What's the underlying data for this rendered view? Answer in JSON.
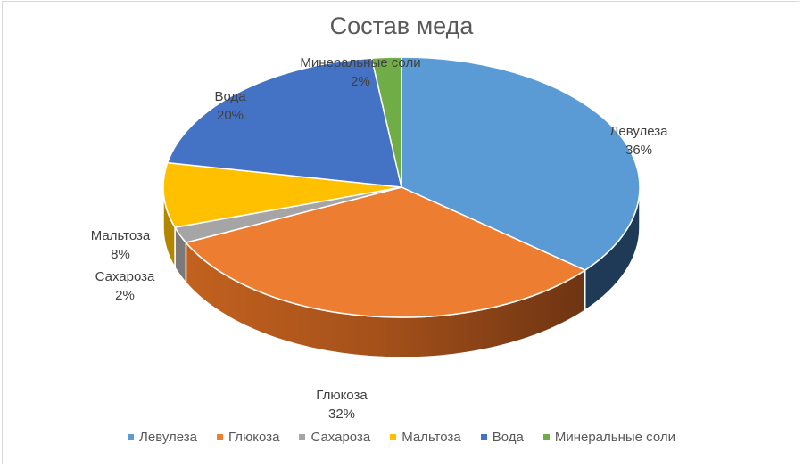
{
  "chart_data": {
    "type": "pie",
    "style": "3d",
    "title": "Состав меда",
    "categories": [
      "Левулеза",
      "Глюкоза",
      "Сахароза",
      "Мальтоза",
      "Вода",
      "Минеральные соли"
    ],
    "values": [
      36,
      32,
      2,
      8,
      20,
      2
    ],
    "unit": "%",
    "colors": [
      "#5B9BD5",
      "#ED7D31",
      "#A5A5A5",
      "#FFC000",
      "#4472C4",
      "#70AD47"
    ],
    "data_labels": [
      {
        "name": "Левулеза",
        "value": "36%"
      },
      {
        "name": "Глюкоза",
        "value": "32%"
      },
      {
        "name": "Сахароза",
        "value": "2%"
      },
      {
        "name": "Мальтоза",
        "value": "8%"
      },
      {
        "name": "Вода",
        "value": "20%"
      },
      {
        "name": "Минеральные соли",
        "value": "2%"
      }
    ],
    "legend_position": "bottom"
  },
  "title": "Состав меда",
  "legend": [
    {
      "label": "Левулеза",
      "color": "#5B9BD5"
    },
    {
      "label": "Глюкоза",
      "color": "#ED7D31"
    },
    {
      "label": "Сахароза",
      "color": "#A5A5A5"
    },
    {
      "label": "Мальтоза",
      "color": "#FFC000"
    },
    {
      "label": "Вода",
      "color": "#4472C4"
    },
    {
      "label": "Минеральные соли",
      "color": "#70AD47"
    }
  ],
  "labels": {
    "levuleza": {
      "name": "Левулеза",
      "pct": "36%"
    },
    "glukoza": {
      "name": "Глюкоза",
      "pct": "32%"
    },
    "saharoza": {
      "name": "Сахароза",
      "pct": "2%"
    },
    "maltoza": {
      "name": "Мальтоза",
      "pct": "8%"
    },
    "voda": {
      "name": "Вода",
      "pct": "20%"
    },
    "soli": {
      "name": "Минеральные соли",
      "pct": "2%"
    }
  }
}
